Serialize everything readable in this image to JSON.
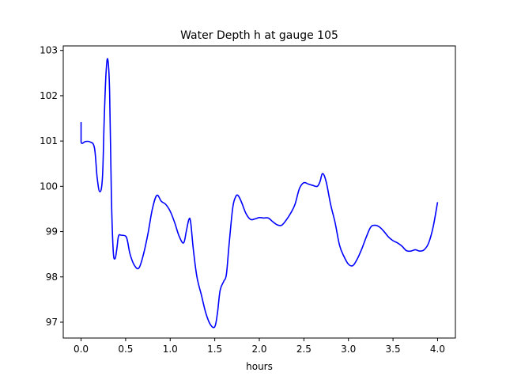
{
  "chart_data": {
    "type": "line",
    "title": "Water Depth h at gauge 105",
    "xlabel": "hours",
    "ylabel": "",
    "xlim": [
      -0.2,
      4.2
    ],
    "ylim": [
      96.65,
      103.1
    ],
    "xticks": [
      0.0,
      0.5,
      1.0,
      1.5,
      2.0,
      2.5,
      3.0,
      3.5,
      4.0
    ],
    "xtick_labels": [
      "0.0",
      "0.5",
      "1.0",
      "1.5",
      "2.0",
      "2.5",
      "3.0",
      "3.5",
      "4.0"
    ],
    "yticks": [
      97,
      98,
      99,
      100,
      101,
      102,
      103
    ],
    "ytick_labels": [
      "97",
      "98",
      "99",
      "100",
      "101",
      "102",
      "103"
    ],
    "grid": false,
    "legend": "none",
    "series": [
      {
        "color": "#0000ff",
        "x": [
          0.0,
          0.0,
          0.05,
          0.1,
          0.15,
          0.18,
          0.21,
          0.24,
          0.26,
          0.28,
          0.3,
          0.32,
          0.34,
          0.36,
          0.38,
          0.4,
          0.42,
          0.45,
          0.5,
          0.52,
          0.55,
          0.6,
          0.65,
          0.7,
          0.75,
          0.8,
          0.85,
          0.9,
          0.95,
          1.0,
          1.05,
          1.1,
          1.15,
          1.18,
          1.21,
          1.23,
          1.26,
          1.3,
          1.35,
          1.4,
          1.45,
          1.5,
          1.53,
          1.56,
          1.6,
          1.63,
          1.66,
          1.7,
          1.73,
          1.76,
          1.8,
          1.85,
          1.9,
          1.95,
          2.0,
          2.05,
          2.1,
          2.15,
          2.2,
          2.25,
          2.3,
          2.35,
          2.4,
          2.45,
          2.5,
          2.55,
          2.6,
          2.65,
          2.68,
          2.71,
          2.75,
          2.8,
          2.85,
          2.9,
          2.95,
          3.0,
          3.05,
          3.1,
          3.15,
          3.2,
          3.25,
          3.3,
          3.35,
          3.4,
          3.45,
          3.5,
          3.55,
          3.6,
          3.65,
          3.7,
          3.75,
          3.8,
          3.85,
          3.9,
          3.95,
          4.0
        ],
        "y": [
          101.42,
          100.98,
          100.99,
          100.98,
          100.85,
          100.2,
          99.88,
          100.2,
          101.5,
          102.5,
          102.8,
          102.1,
          99.8,
          98.6,
          98.4,
          98.6,
          98.9,
          98.92,
          98.9,
          98.8,
          98.5,
          98.25,
          98.2,
          98.5,
          98.95,
          99.5,
          99.8,
          99.67,
          99.6,
          99.45,
          99.2,
          98.9,
          98.75,
          99.0,
          99.27,
          99.2,
          98.6,
          98.0,
          97.6,
          97.2,
          96.95,
          96.9,
          97.2,
          97.7,
          97.9,
          98.05,
          98.7,
          99.5,
          99.75,
          99.8,
          99.65,
          99.4,
          99.27,
          99.28,
          99.31,
          99.3,
          99.3,
          99.22,
          99.15,
          99.14,
          99.25,
          99.4,
          99.6,
          99.95,
          100.08,
          100.05,
          100.02,
          100.0,
          100.1,
          100.28,
          100.1,
          99.6,
          99.2,
          98.7,
          98.45,
          98.28,
          98.25,
          98.4,
          98.62,
          98.88,
          99.1,
          99.14,
          99.1,
          99.0,
          98.88,
          98.8,
          98.75,
          98.68,
          98.58,
          98.57,
          98.6,
          98.57,
          98.6,
          98.75,
          99.1,
          99.65
        ]
      }
    ]
  }
}
